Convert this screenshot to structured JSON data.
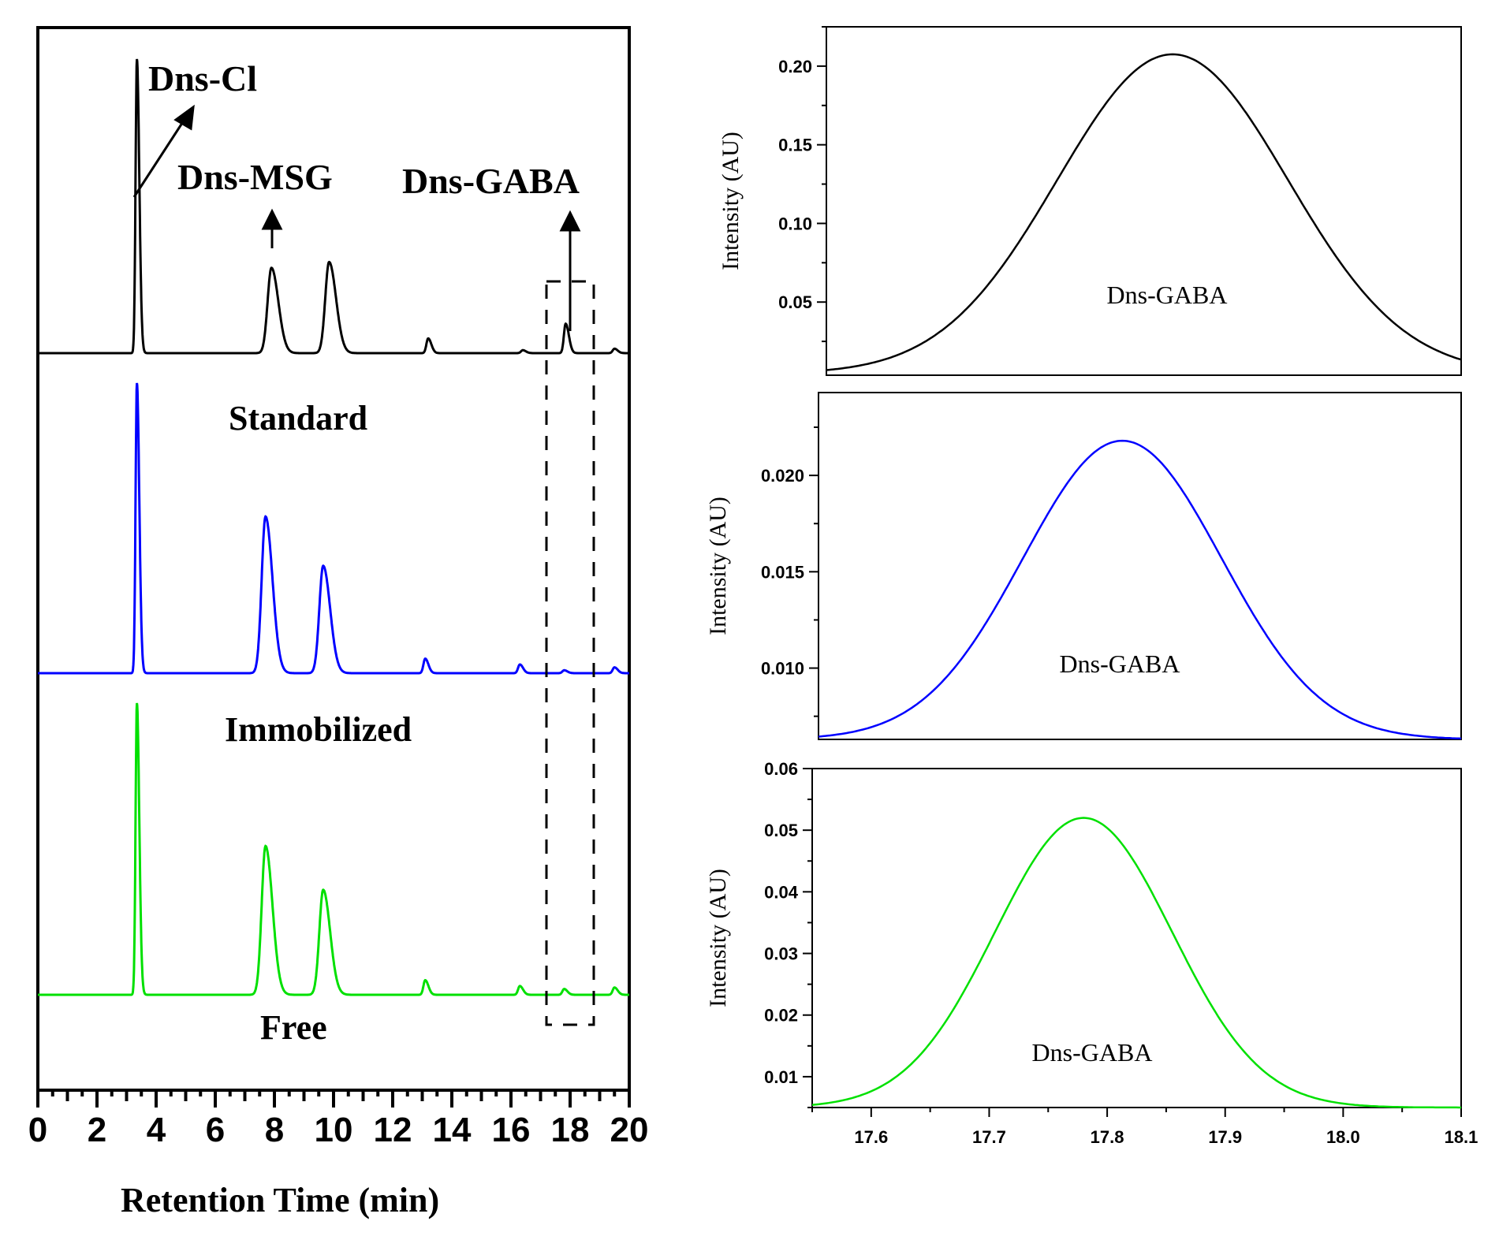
{
  "chart_data": [
    {
      "type": "line",
      "panel": "chromatograms",
      "xlabel": "Retention Time (min)",
      "xlim": [
        0,
        20
      ],
      "x_ticks": [
        "0",
        "2",
        "4",
        "6",
        "8",
        "10",
        "12",
        "14",
        "16",
        "18",
        "20"
      ],
      "annotations": [
        "Dns-Cl",
        "Dns-MSG",
        "Dns-GABA"
      ],
      "series": [
        {
          "name": "Standard",
          "color": "#000000",
          "peaks": [
            {
              "rt": 3.35,
              "height": 1.0
            },
            {
              "rt": 7.9,
              "height": 0.29
            },
            {
              "rt": 9.85,
              "height": 0.31
            },
            {
              "rt": 13.2,
              "height": 0.05
            },
            {
              "rt": 16.4,
              "height": 0.01
            },
            {
              "rt": 17.85,
              "height": 0.1
            },
            {
              "rt": 19.5,
              "height": 0.015
            }
          ]
        },
        {
          "name": "Immobilized",
          "color": "#0000ff",
          "peaks": [
            {
              "rt": 3.35,
              "height": 1.0
            },
            {
              "rt": 7.7,
              "height": 0.54
            },
            {
              "rt": 9.65,
              "height": 0.37
            },
            {
              "rt": 13.1,
              "height": 0.05
            },
            {
              "rt": 16.3,
              "height": 0.03
            },
            {
              "rt": 17.8,
              "height": 0.01
            },
            {
              "rt": 19.5,
              "height": 0.02
            }
          ]
        },
        {
          "name": "Free",
          "color": "#00e000",
          "peaks": [
            {
              "rt": 3.35,
              "height": 1.0
            },
            {
              "rt": 7.7,
              "height": 0.51
            },
            {
              "rt": 9.65,
              "height": 0.36
            },
            {
              "rt": 13.1,
              "height": 0.05
            },
            {
              "rt": 16.3,
              "height": 0.03
            },
            {
              "rt": 17.8,
              "height": 0.02
            },
            {
              "rt": 19.5,
              "height": 0.025
            }
          ]
        }
      ],
      "highlight_region_min": [
        17.2,
        18.8
      ]
    },
    {
      "type": "line",
      "panel": "inset-standard",
      "ylabel": "Intensity (AU)",
      "label": "Dns-GABA",
      "color": "#000000",
      "xlim": [
        17.55,
        18.1
      ],
      "ylim": [
        0.0035,
        0.225
      ],
      "y_ticks": [
        "0.05",
        "0.10",
        "0.15",
        "0.20"
      ],
      "peak": {
        "center": 17.85,
        "sigma": 0.1,
        "height": 0.203,
        "baseline": 0.0045
      }
    },
    {
      "type": "line",
      "panel": "inset-immobilized",
      "ylabel": "Intensity (AU)",
      "label": "Dns-GABA",
      "color": "#0000ff",
      "xlim": [
        17.55,
        18.1
      ],
      "ylim": [
        0.0063,
        0.0243
      ],
      "y_ticks": [
        "0.010",
        "0.015",
        "0.020"
      ],
      "peak": {
        "center": 17.81,
        "sigma": 0.085,
        "height": 0.0155,
        "baseline": 0.0063
      }
    },
    {
      "type": "line",
      "panel": "inset-free",
      "ylabel": "Intensity (AU)",
      "label": "Dns-GABA",
      "color": "#00e000",
      "xlim": [
        17.55,
        18.1
      ],
      "ylim": [
        0.005,
        0.06
      ],
      "y_ticks": [
        "0.01",
        "0.02",
        "0.03",
        "0.04",
        "0.05",
        "0.06"
      ],
      "x_ticks": [
        "17.6",
        "17.7",
        "17.8",
        "17.9",
        "18.0",
        "18.1"
      ],
      "peak": {
        "center": 17.78,
        "sigma": 0.075,
        "height": 0.047,
        "baseline": 0.005
      }
    }
  ]
}
